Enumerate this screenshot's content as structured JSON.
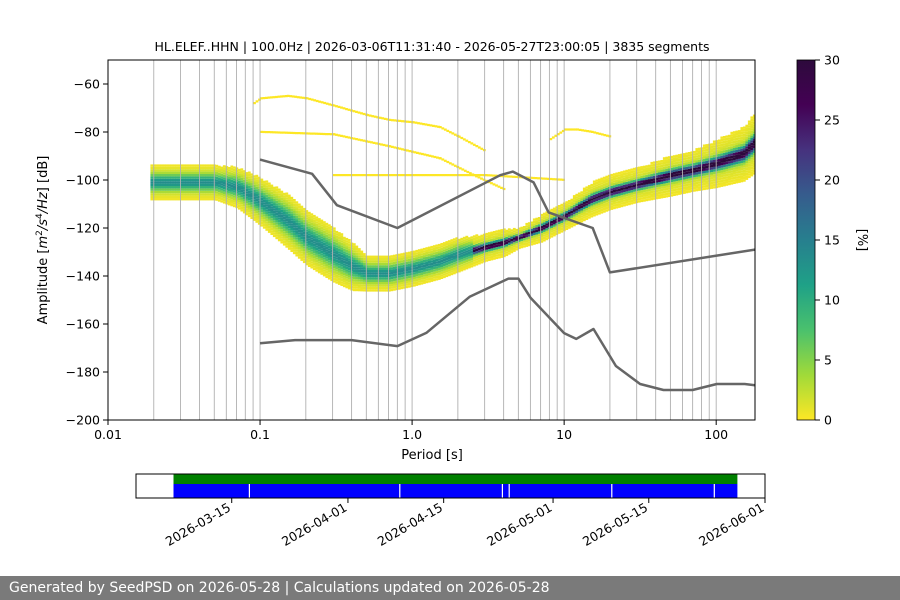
{
  "chart_data": {
    "type": "heatmap",
    "title": "HL.ELEF..HHN | 100.0Hz | 2026-03-06T11:31:40 - 2026-05-27T23:00:05 | 3835 segments",
    "xlabel": "Period [s]",
    "ylabel_parts": [
      "Amplitude [",
      "m",
      "2",
      "/",
      "s",
      "4",
      "/",
      "Hz",
      "] [dB]"
    ],
    "x_scale": "log",
    "xlim": [
      0.01,
      180
    ],
    "ylim": [
      -200,
      -50
    ],
    "x_ticks": [
      0.01,
      0.1,
      1,
      10,
      100
    ],
    "x_tick_labels": [
      "0.01",
      "0.1",
      "1.0",
      "10",
      "100"
    ],
    "y_ticks": [
      -200,
      -180,
      -160,
      -140,
      -120,
      -100,
      -80,
      -60
    ],
    "y_tick_labels": [
      "−200",
      "−180",
      "−160",
      "−140",
      "−120",
      "−100",
      "−80",
      "−60"
    ],
    "grid": true,
    "colormap": "viridis_r",
    "colorbar": {
      "label": "[%]",
      "range": [
        0,
        30
      ],
      "ticks": [
        0,
        5,
        10,
        15,
        20,
        25,
        30
      ],
      "tick_labels": [
        "0",
        "5",
        "10",
        "15",
        "20",
        "25",
        "30"
      ]
    },
    "mode_curve": {
      "period": [
        0.02,
        0.03,
        0.05,
        0.07,
        0.1,
        0.15,
        0.2,
        0.3,
        0.4,
        0.5,
        0.7,
        1.0,
        1.5,
        2,
        3,
        4,
        5,
        7,
        10,
        15,
        20,
        30,
        50,
        70,
        100,
        150,
        180
      ],
      "db": [
        -101,
        -101,
        -101,
        -103,
        -109,
        -117,
        -124,
        -131,
        -136,
        -139,
        -139,
        -137,
        -134,
        -131,
        -128,
        -126,
        -124,
        -120,
        -115,
        -108,
        -105,
        -102,
        -98,
        -96,
        -93,
        -89,
        -84
      ]
    },
    "spread_halfwidth_db": [
      5,
      5,
      5,
      6,
      7,
      8,
      8,
      8,
      7,
      5,
      5,
      5,
      5,
      5,
      4,
      4,
      3,
      4,
      4,
      5,
      5,
      5,
      6,
      6,
      7,
      8,
      9
    ],
    "sparse_outliers": [
      {
        "period": [
          0.09,
          0.1,
          0.15,
          0.2,
          0.3,
          0.5,
          0.7,
          1.0,
          1.5,
          2,
          3
        ],
        "db": [
          -68,
          -66,
          -65,
          -66,
          -69,
          -73,
          -75,
          -76,
          -78,
          -82,
          -88
        ]
      },
      {
        "period": [
          0.1,
          0.3,
          0.7,
          1.5,
          2.5,
          4
        ],
        "db": [
          -80,
          -81,
          -86,
          -91,
          -98,
          -104
        ]
      },
      {
        "period": [
          8,
          10,
          12,
          15,
          20
        ],
        "db": [
          -83,
          -79,
          -79,
          -80,
          -82
        ]
      },
      {
        "period": [
          0.3,
          1.0,
          3,
          10
        ],
        "db": [
          -98,
          -98,
          -98,
          -100
        ]
      }
    ],
    "noise_models": [
      {
        "period": [
          0.1,
          0.17,
          0.4,
          0.8,
          1.24,
          2.4,
          4.3,
          5,
          6,
          10,
          12,
          15.6,
          21.9,
          31.6,
          45,
          70,
          101,
          154,
          180
        ],
        "db": [
          -168,
          -166.7,
          -166.7,
          -169.2,
          -163.7,
          -148.6,
          -141.1,
          -141.1,
          -149,
          -163.8,
          -166.2,
          -162.1,
          -177.5,
          -185,
          -187.5,
          -187.5,
          -185,
          -185,
          -185.5
        ]
      },
      {
        "period": [
          0.1,
          0.22,
          0.32,
          0.8,
          3.8,
          4.6,
          6.3,
          7.9,
          15.4,
          20,
          180
        ],
        "db": [
          -91.5,
          -97.4,
          -110.5,
          -120,
          -98,
          -96.5,
          -101,
          -113.5,
          -120,
          -138.5,
          -129
        ]
      }
    ]
  },
  "data_availability": {
    "date_ticks": [
      "2026-03-15",
      "2026-04-01",
      "2026-04-15",
      "2026-05-01",
      "2026-05-15",
      "2026-06-01"
    ],
    "date_range": [
      "2026-03-01",
      "2026-06-01"
    ],
    "coverage_start": "2026-03-06T11:31:40",
    "coverage_end": "2026-05-27T23:00:05",
    "gaps": [
      "2026-03-17",
      "2026-04-08",
      "2026-04-23",
      "2026-04-24",
      "2026-05-09",
      "2026-05-24"
    ],
    "colors": {
      "coverage": "#008000",
      "segments": "#0000ff"
    }
  },
  "footer": {
    "text": "Generated by SeedPSD on 2026-05-28 | Calculations updated on 2026-05-28"
  }
}
